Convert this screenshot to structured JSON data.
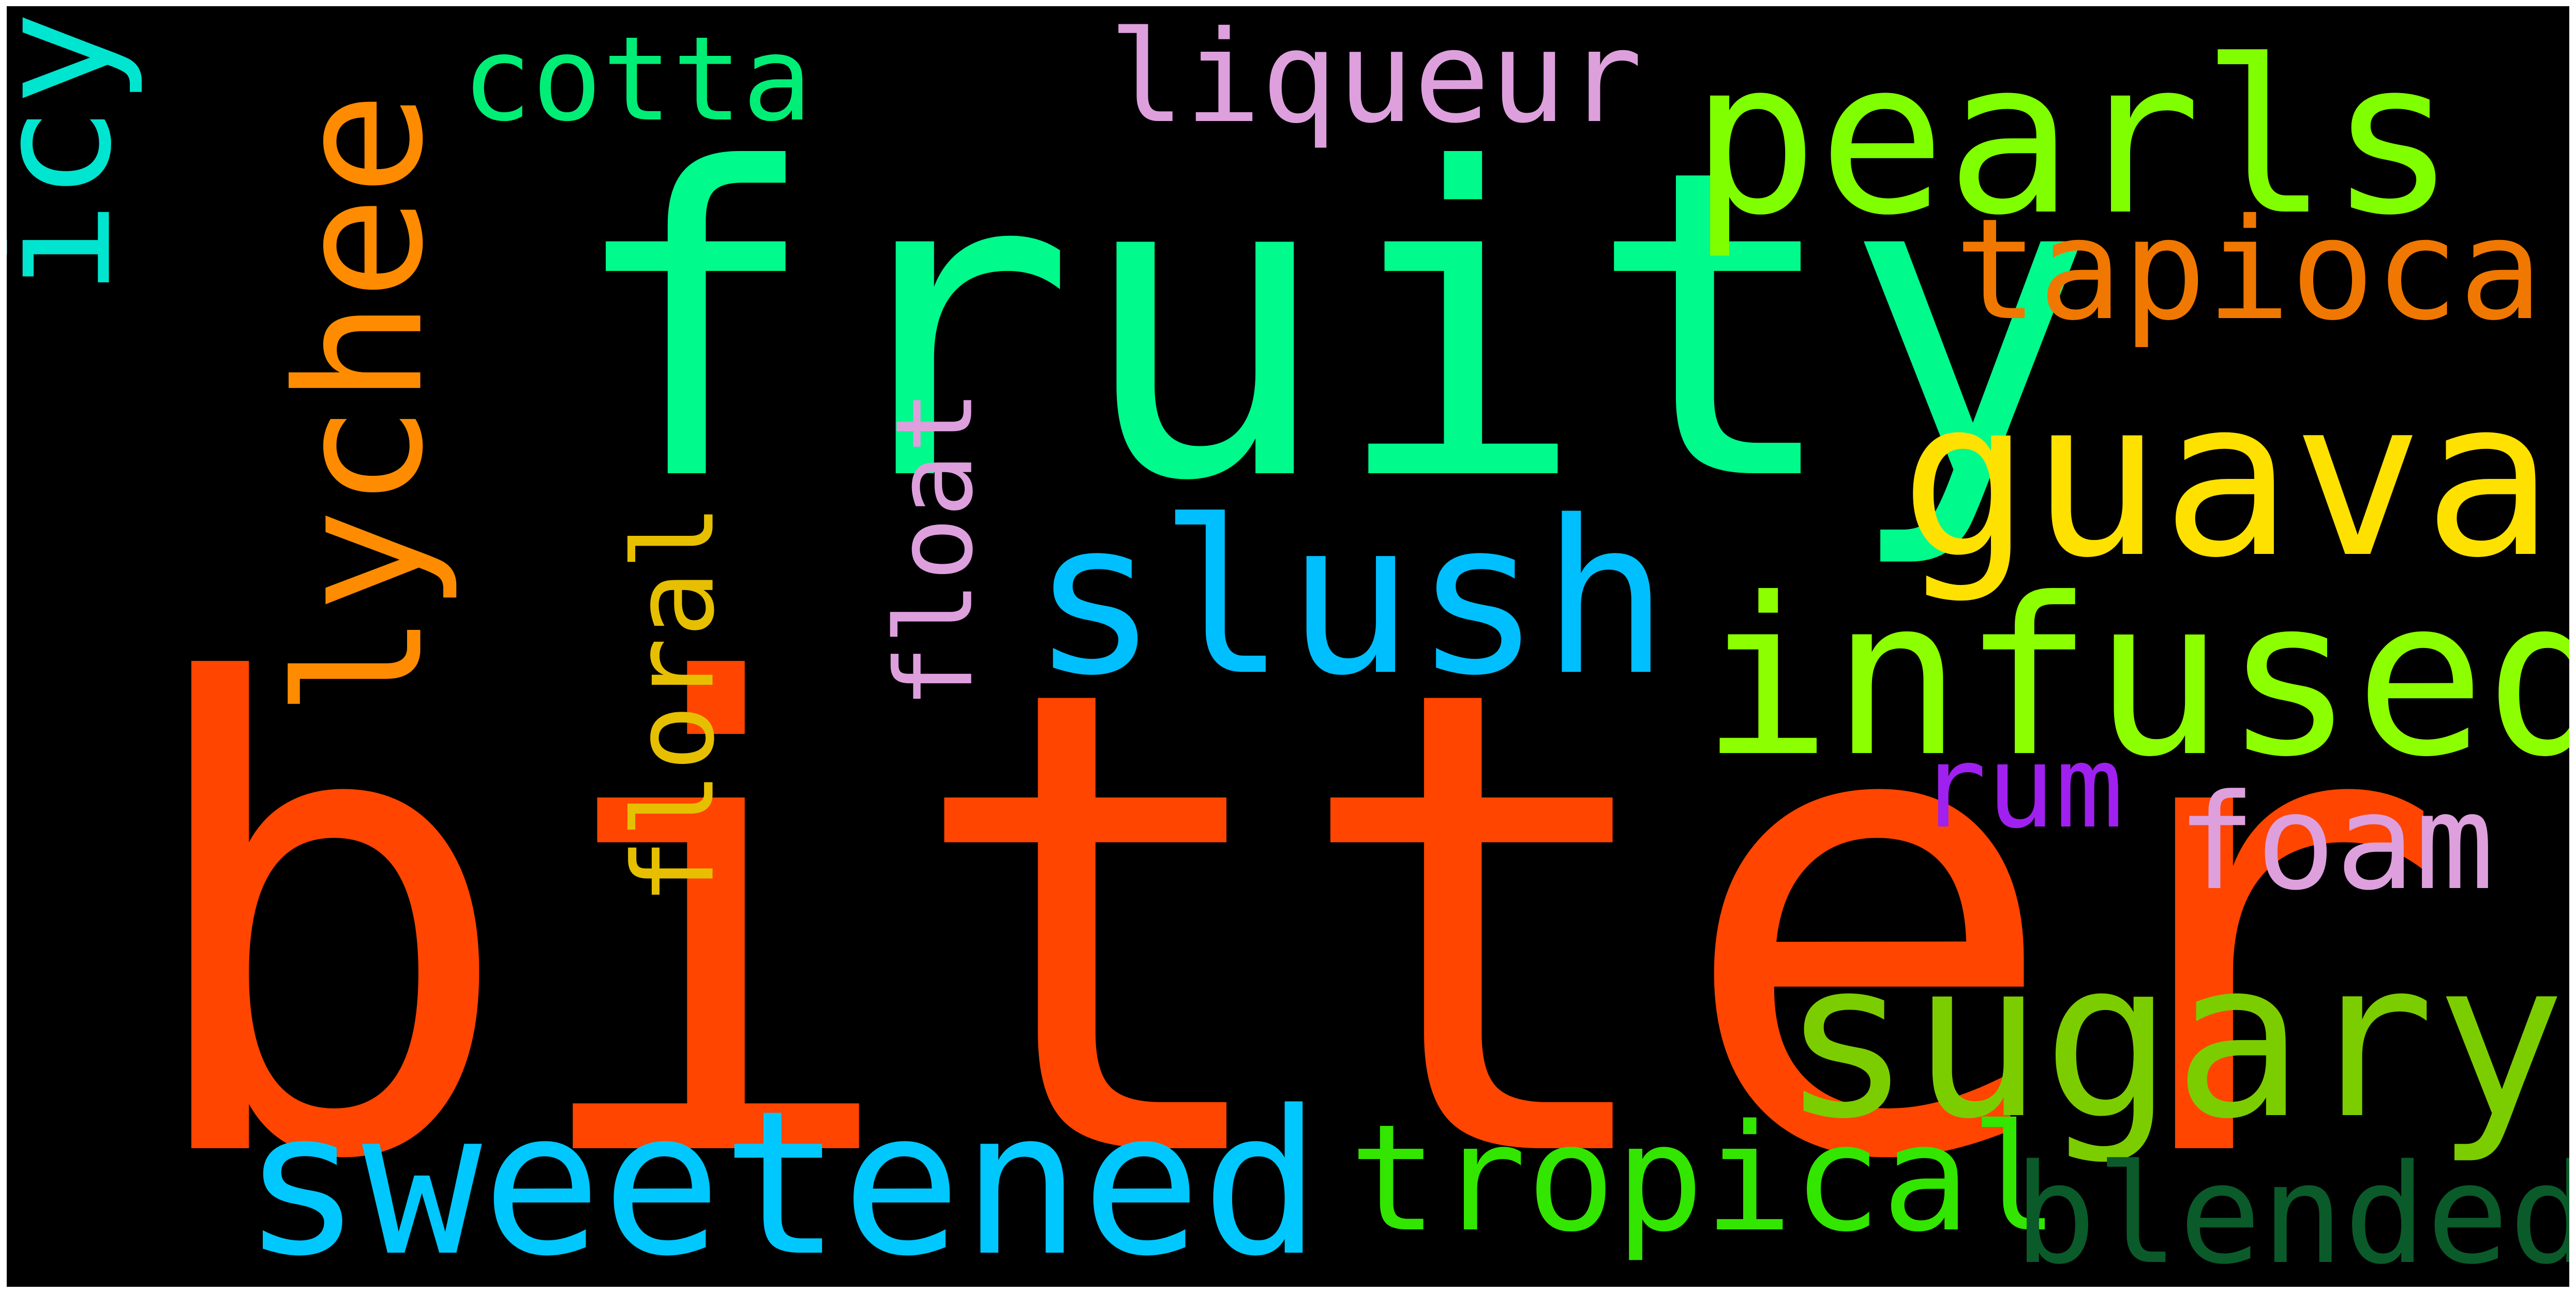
{
  "words": {
    "bitter": {
      "text": "bitter",
      "color": "#ff4500"
    },
    "fruity": {
      "text": "fruity",
      "color": "#00fa8c"
    },
    "sweetened": {
      "text": "sweetened",
      "color": "#00c8ff"
    },
    "sugary": {
      "text": "sugary",
      "color": "#7ccd00"
    },
    "guava": {
      "text": "guava",
      "color": "#ffe100"
    },
    "infused": {
      "text": "infused",
      "color": "#8cff00"
    },
    "slush": {
      "text": "slush",
      "color": "#00bfff"
    },
    "pearls": {
      "text": "pearls",
      "color": "#80ff00"
    },
    "tapioca": {
      "text": "tapioca",
      "color": "#f07800"
    },
    "tropical": {
      "text": "tropical",
      "color": "#32e600"
    },
    "blended": {
      "text": "blended",
      "color": "#0b5a2a"
    },
    "foam": {
      "text": "foam",
      "color": "#dda0dd"
    },
    "rum": {
      "text": "rum",
      "color": "#a020f0"
    },
    "liqueur": {
      "text": "liqueur",
      "color": "#dda0dd"
    },
    "cotta": {
      "text": "cotta",
      "color": "#00ee76"
    },
    "icy": {
      "text": "icy",
      "color": "#00e5d0"
    },
    "lychee": {
      "text": "lychee",
      "color": "#ff8c00"
    },
    "floral": {
      "text": "floral",
      "color": "#e6c000"
    },
    "float": {
      "text": "float",
      "color": "#dda0dd"
    }
  }
}
